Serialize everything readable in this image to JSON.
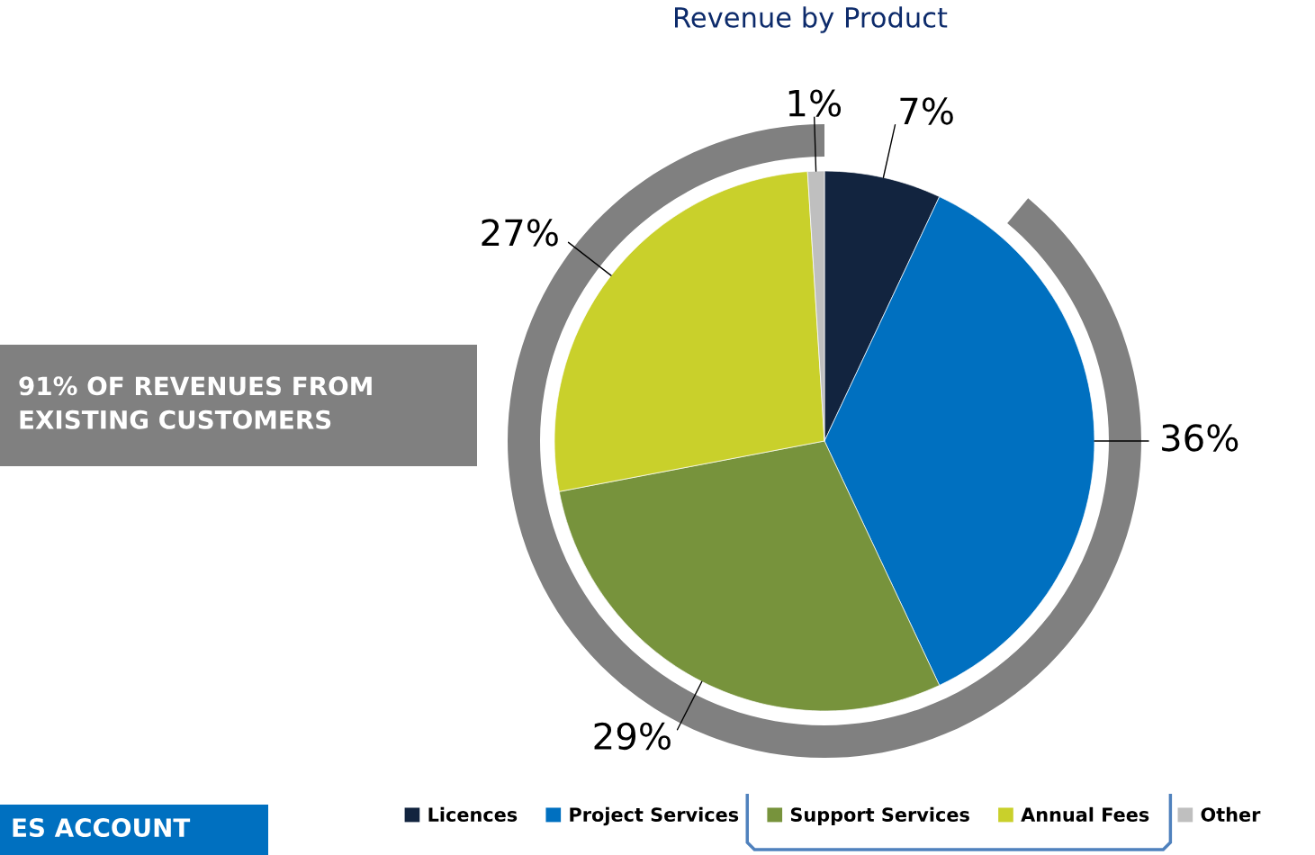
{
  "chart_data": {
    "type": "pie",
    "title": "Revenue by Product",
    "categories": [
      "Licences",
      "Project Services",
      "Support Services",
      "Annual Fees",
      "Other"
    ],
    "values": [
      7,
      36,
      29,
      27,
      1
    ],
    "colors": [
      "#12243f",
      "#0070c0",
      "#77933c",
      "#c9d02b",
      "#bfbfbf"
    ],
    "value_labels": [
      "7%",
      "36%",
      "29%",
      "27%",
      "1%"
    ],
    "annotations": [
      "91% OF REVENUES FROM\nEXISTING CUSTOMERS",
      "ES ACCOUNT"
    ],
    "legend": "bottom"
  }
}
